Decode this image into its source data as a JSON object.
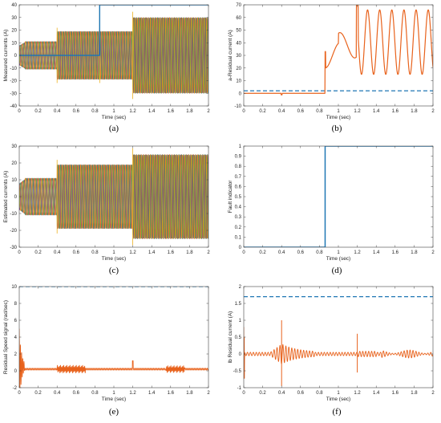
{
  "colors": {
    "phase_a": "#1f77b4",
    "phase_b": "#e8621c",
    "phase_c": "#edb120",
    "phase_d": "#7e2f8e",
    "phase_e": "#77ac30",
    "residual": "#e8621c",
    "threshold": "#1f77b4",
    "fault_indicator": "#1f77b4"
  },
  "chart_data": [
    {
      "id": "a",
      "panel_label": "(a)",
      "type": "line",
      "xlabel": "Time (sec)",
      "ylabel": "Measured currents (A)",
      "xlim": [
        0,
        2
      ],
      "ylim": [
        -40,
        40
      ],
      "xticks": [
        "0",
        "0.2",
        "0.4",
        "0.6",
        "0.8",
        "1",
        "1.2",
        "1.4",
        "1.6",
        "1.8",
        "2"
      ],
      "yticks": [
        "-40",
        "-30",
        "-20",
        "-10",
        "0",
        "10",
        "20",
        "30",
        "40"
      ],
      "grid": false,
      "series_description": "five-phase sinusoidal currents",
      "segments": [
        {
          "t_start": 0.0,
          "t_end": 0.4,
          "amplitude": 11
        },
        {
          "t_start": 0.4,
          "t_end": 0.85,
          "amplitude": 19
        },
        {
          "t_start": 0.85,
          "t_end": 1.2,
          "amplitude": 19
        },
        {
          "t_start": 1.2,
          "t_end": 2.0,
          "amplitude": 30
        }
      ],
      "step_trace": {
        "color_key": "phase_a",
        "t_step": 0.85,
        "low": 0,
        "high": 40
      }
    },
    {
      "id": "b",
      "panel_label": "(b)",
      "type": "line",
      "xlabel": "Time (sec)",
      "ylabel": "a-Residual current (A)",
      "xlim": [
        0,
        2
      ],
      "ylim": [
        -10,
        70
      ],
      "xticks": [
        "0",
        "0.2",
        "0.4",
        "0.6",
        "0.8",
        "1",
        "1.2",
        "1.4",
        "1.6",
        "1.8",
        "2"
      ],
      "yticks": [
        "-10",
        "0",
        "10",
        "20",
        "30",
        "40",
        "50",
        "60",
        "70"
      ],
      "grid": false,
      "threshold": 2,
      "residual_before_fault": 0,
      "fault_time": 0.86,
      "oscillation_after_fault": {
        "min": 15,
        "max": 66,
        "peak_at_1_2": 70
      }
    },
    {
      "id": "c",
      "panel_label": "(c)",
      "type": "line",
      "xlabel": "Time (sec)",
      "ylabel": "Estimated currents (A)",
      "xlim": [
        0,
        2
      ],
      "ylim": [
        -30,
        30
      ],
      "xticks": [
        "0",
        "0.2",
        "0.4",
        "0.6",
        "0.8",
        "1",
        "1.2",
        "1.4",
        "1.6",
        "1.8",
        "2"
      ],
      "yticks": [
        "-30",
        "-20",
        "-10",
        "0",
        "10",
        "20",
        "30"
      ],
      "grid": false,
      "series_description": "five-phase estimated sinusoidal currents",
      "segments": [
        {
          "t_start": 0.0,
          "t_end": 0.4,
          "amplitude": 11
        },
        {
          "t_start": 0.4,
          "t_end": 1.2,
          "amplitude": 19
        },
        {
          "t_start": 1.2,
          "t_end": 2.0,
          "amplitude": 25
        }
      ]
    },
    {
      "id": "d",
      "panel_label": "(d)",
      "type": "line",
      "xlabel": "Time (sec)",
      "ylabel": "Fault indicator",
      "xlim": [
        0,
        2
      ],
      "ylim": [
        0,
        1
      ],
      "xticks": [
        "0",
        "0.2",
        "0.4",
        "0.6",
        "0.8",
        "1",
        "1.2",
        "1.4",
        "1.6",
        "1.8",
        "2"
      ],
      "yticks": [
        "0",
        "0.1",
        "0.2",
        "0.3",
        "0.4",
        "0.5",
        "0.6",
        "0.7",
        "0.8",
        "0.9",
        "1"
      ],
      "grid": false,
      "x": [
        0,
        0.86,
        0.86,
        2
      ],
      "y": [
        0,
        0,
        1,
        1
      ]
    },
    {
      "id": "e",
      "panel_label": "(e)",
      "type": "line",
      "xlabel": "Time (sec)",
      "ylabel": "Residual Speed signal (rad/sec)",
      "xlim": [
        0,
        2
      ],
      "ylim": [
        -2,
        10
      ],
      "xticks": [
        "0",
        "0.2",
        "0.4",
        "0.6",
        "0.8",
        "1",
        "1.2",
        "1.4",
        "1.6",
        "1.8",
        "2"
      ],
      "yticks": [
        "-2",
        "0",
        "2",
        "4",
        "6",
        "8",
        "10"
      ],
      "grid": false,
      "threshold": 10,
      "residual_level": 0.2,
      "initial_spike": 4.5
    },
    {
      "id": "f",
      "panel_label": "(f)",
      "type": "line",
      "xlabel": "Time (sec)",
      "ylabel": "lb Residual current (A)",
      "xlim": [
        0,
        2
      ],
      "ylim": [
        -1,
        2
      ],
      "xticks": [
        "0",
        "0.2",
        "0.4",
        "0.6",
        "0.8",
        "1",
        "1.2",
        "1.4",
        "1.6",
        "1.8",
        "2"
      ],
      "yticks": [
        "-1",
        "-0.5",
        "0",
        "0.5",
        "1",
        "1.5",
        "2"
      ],
      "grid": false,
      "threshold": 1.7,
      "spikes": [
        {
          "t": 0.4,
          "max": 1.0,
          "min": -0.95
        },
        {
          "t": 1.2,
          "max": 0.6,
          "min": -0.55
        }
      ]
    }
  ]
}
